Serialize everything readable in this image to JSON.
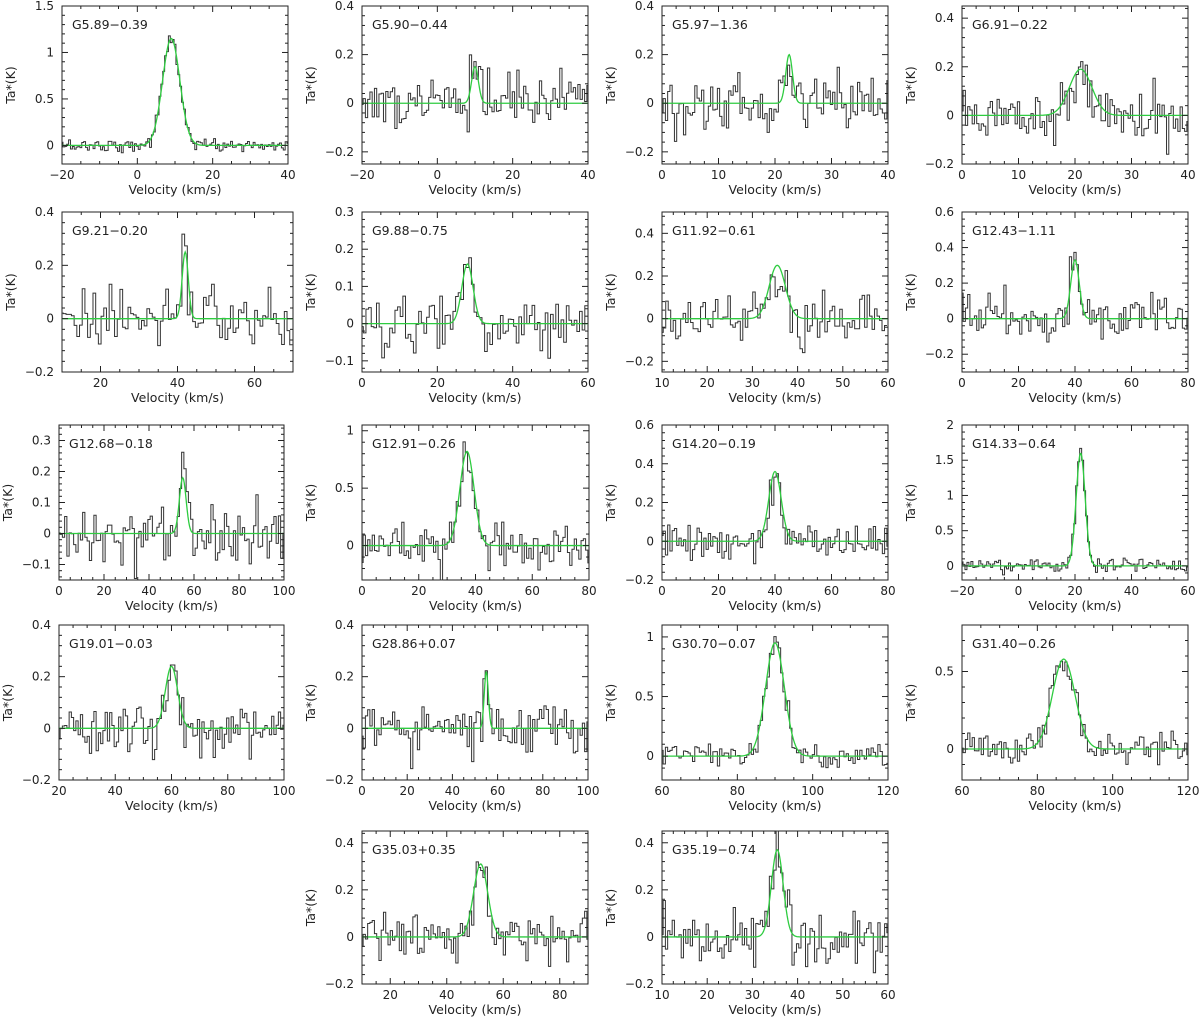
{
  "chart_data": [
    {
      "type": "line",
      "title": "G5.89−0.39",
      "xlabel": "Velocity (km/s)",
      "ylabel": "Ta*(K)",
      "xlim": [
        -20,
        40
      ],
      "ylim": [
        -0.2,
        1.5
      ],
      "xticks": [
        -20,
        0,
        20,
        40
      ],
      "yticks": [
        0,
        0.5,
        1,
        1.5
      ],
      "line": {
        "center": 9,
        "sigma": 2.3,
        "peak": 1.15
      },
      "noise": 0.035,
      "step": 0.5,
      "series": []
    },
    {
      "type": "line",
      "title": "G5.90−0.44",
      "xlabel": "Velocity (km/s)",
      "ylabel": "Ta*(K)",
      "xlim": [
        -20,
        40
      ],
      "ylim": [
        -0.25,
        0.4
      ],
      "xticks": [
        -20,
        0,
        20,
        40
      ],
      "yticks": [
        -0.2,
        0,
        0.2,
        0.4
      ],
      "line": {
        "center": 10,
        "sigma": 0.9,
        "peak": 0.15
      },
      "noise": 0.06,
      "step": 0.6,
      "series": []
    },
    {
      "type": "line",
      "title": "G5.97−1.36",
      "xlabel": "Velocity (km/s)",
      "ylabel": "Ta*(K)",
      "xlim": [
        0,
        40
      ],
      "ylim": [
        -0.25,
        0.4
      ],
      "xticks": [
        0,
        10,
        20,
        30,
        40
      ],
      "yticks": [
        -0.2,
        0,
        0.2,
        0.4
      ],
      "line": {
        "center": 22.5,
        "sigma": 0.6,
        "peak": 0.2
      },
      "noise": 0.055,
      "step": 0.4,
      "series": []
    },
    {
      "type": "line",
      "title": "G6.91−0.22",
      "xlabel": "Velocity (km/s)",
      "ylabel": "Ta*(K)",
      "xlim": [
        0,
        40
      ],
      "ylim": [
        -0.2,
        0.45
      ],
      "xticks": [
        0,
        10,
        20,
        30,
        40
      ],
      "yticks": [
        -0.2,
        0,
        0.2,
        0.4
      ],
      "line": {
        "center": 21,
        "sigma": 2.0,
        "peak": 0.19
      },
      "noise": 0.06,
      "step": 0.4,
      "series": []
    },
    {
      "type": "line",
      "title": "G9.21−0.20",
      "xlabel": "Velocity (km/s)",
      "ylabel": "Ta*(K)",
      "xlim": [
        10,
        70
      ],
      "ylim": [
        -0.2,
        0.4
      ],
      "xticks": [
        20,
        40,
        60
      ],
      "yticks": [
        -0.2,
        0,
        0.2,
        0.4
      ],
      "line": {
        "center": 42,
        "sigma": 0.8,
        "peak": 0.25
      },
      "noise": 0.06,
      "step": 0.7,
      "series": []
    },
    {
      "type": "line",
      "title": "G9.88−0.75",
      "xlabel": "Velocity (km/s)",
      "ylabel": "Ta*(K)",
      "xlim": [
        0,
        60
      ],
      "ylim": [
        -0.13,
        0.3
      ],
      "xticks": [
        0,
        20,
        40,
        60
      ],
      "yticks": [
        -0.1,
        0,
        0.1,
        0.2,
        0.3
      ],
      "line": {
        "center": 28,
        "sigma": 1.5,
        "peak": 0.16
      },
      "noise": 0.04,
      "step": 0.7,
      "series": []
    },
    {
      "type": "line",
      "title": "G11.92−0.61",
      "xlabel": "Velocity (km/s)",
      "ylabel": "Ta*(K)",
      "xlim": [
        10,
        60
      ],
      "ylim": [
        -0.25,
        0.5
      ],
      "xticks": [
        10,
        20,
        30,
        40,
        50,
        60
      ],
      "yticks": [
        -0.2,
        0,
        0.2,
        0.4
      ],
      "line": {
        "center": 35.5,
        "sigma": 1.8,
        "peak": 0.25
      },
      "noise": 0.06,
      "step": 0.55,
      "series": []
    },
    {
      "type": "line",
      "title": "G12.43−1.11",
      "xlabel": "Velocity (km/s)",
      "ylabel": "Ta*(K)",
      "xlim": [
        0,
        80
      ],
      "ylim": [
        -0.3,
        0.6
      ],
      "xticks": [
        0,
        20,
        40,
        60,
        80
      ],
      "yticks": [
        -0.2,
        0,
        0.2,
        0.4,
        0.6
      ],
      "line": {
        "center": 40,
        "sigma": 1.5,
        "peak": 0.33
      },
      "noise": 0.07,
      "step": 0.8,
      "series": []
    },
    {
      "type": "line",
      "title": "G12.68−0.18",
      "xlabel": "Velocity (km/s)",
      "ylabel": "Ta*(K)",
      "xlim": [
        0,
        100
      ],
      "ylim": [
        -0.15,
        0.35
      ],
      "xticks": [
        0,
        20,
        40,
        60,
        80,
        100
      ],
      "yticks": [
        -0.1,
        0,
        0.1,
        0.2,
        0.3
      ],
      "line": {
        "center": 55,
        "sigma": 1.5,
        "peak": 0.18
      },
      "noise": 0.05,
      "step": 1.0,
      "series": []
    },
    {
      "type": "line",
      "title": "G12.91−0.26",
      "xlabel": "Velocity (km/s)",
      "ylabel": "Ta*(K)",
      "xlim": [
        0,
        80
      ],
      "ylim": [
        -0.3,
        1.05
      ],
      "xticks": [
        0,
        20,
        40,
        60,
        80
      ],
      "yticks": [
        0,
        0.5,
        1
      ],
      "line": {
        "center": 37,
        "sigma": 2.5,
        "peak": 0.82
      },
      "noise": 0.09,
      "step": 0.8,
      "series": []
    },
    {
      "type": "line",
      "title": "G14.20−0.19",
      "xlabel": "Velocity (km/s)",
      "ylabel": "Ta*(K)",
      "xlim": [
        0,
        80
      ],
      "ylim": [
        -0.2,
        0.6
      ],
      "xticks": [
        0,
        20,
        40,
        60,
        80
      ],
      "yticks": [
        -0.2,
        0,
        0.2,
        0.4,
        0.6
      ],
      "line": {
        "center": 40,
        "sigma": 2.2,
        "peak": 0.36
      },
      "noise": 0.05,
      "step": 0.8,
      "series": []
    },
    {
      "type": "line",
      "title": "G14.33−0.64",
      "xlabel": "Velocity (km/s)",
      "ylabel": "Ta*(K)",
      "xlim": [
        -20,
        60
      ],
      "ylim": [
        -0.2,
        2
      ],
      "xticks": [
        -20,
        0,
        20,
        40,
        60
      ],
      "yticks": [
        0,
        0.5,
        1,
        1.5,
        2
      ],
      "line": {
        "center": 22,
        "sigma": 1.6,
        "peak": 1.6
      },
      "noise": 0.05,
      "step": 0.7,
      "series": []
    },
    {
      "type": "line",
      "title": "G19.01−0.03",
      "xlabel": "Velocity (km/s)",
      "ylabel": "Ta*(K)",
      "xlim": [
        20,
        100
      ],
      "ylim": [
        -0.2,
        0.4
      ],
      "xticks": [
        20,
        40,
        60,
        80,
        100
      ],
      "yticks": [
        -0.2,
        0,
        0.2,
        0.4
      ],
      "line": {
        "center": 60,
        "sigma": 2.2,
        "peak": 0.24
      },
      "noise": 0.045,
      "step": 0.8,
      "series": []
    },
    {
      "type": "line",
      "title": "G28.86+0.07",
      "xlabel": "Velocity (km/s)",
      "ylabel": "Ta*(K)",
      "xlim": [
        0,
        100
      ],
      "ylim": [
        -0.2,
        0.4
      ],
      "xticks": [
        0,
        20,
        40,
        60,
        80,
        100
      ],
      "yticks": [
        -0.2,
        0,
        0.2,
        0.4
      ],
      "line": {
        "center": 55,
        "sigma": 0.9,
        "peak": 0.22
      },
      "noise": 0.05,
      "step": 1.0,
      "series": []
    },
    {
      "type": "line",
      "title": "G30.70−0.07",
      "xlabel": "Velocity (km/s)",
      "ylabel": "Ta*(K)",
      "xlim": [
        60,
        120
      ],
      "ylim": [
        -0.2,
        1.1
      ],
      "xticks": [
        60,
        80,
        100,
        120
      ],
      "yticks": [
        0,
        0.5,
        1
      ],
      "line": {
        "center": 90,
        "sigma": 2.5,
        "peak": 0.95
      },
      "noise": 0.05,
      "step": 0.6,
      "series": []
    },
    {
      "type": "line",
      "title": "G31.40−0.26",
      "xlabel": "Velocity (km/s)",
      "ylabel": "Ta*(K)",
      "xlim": [
        60,
        120
      ],
      "ylim": [
        -0.2,
        0.8
      ],
      "xticks": [
        60,
        80,
        100,
        120
      ],
      "yticks": [
        0,
        0.5
      ],
      "line": {
        "center": 87,
        "sigma": 3.0,
        "peak": 0.58
      },
      "noise": 0.05,
      "step": 0.6,
      "series": []
    },
    {
      "type": "line",
      "title": "G35.03+0.35",
      "xlabel": "Velocity (km/s)",
      "ylabel": "Ta*(K)",
      "xlim": [
        10,
        90
      ],
      "ylim": [
        -0.2,
        0.45
      ],
      "xticks": [
        20,
        40,
        60,
        80
      ],
      "yticks": [
        -0.2,
        0,
        0.2,
        0.4
      ],
      "line": {
        "center": 52,
        "sigma": 2.5,
        "peak": 0.31
      },
      "noise": 0.05,
      "step": 0.8,
      "series": []
    },
    {
      "type": "line",
      "title": "G35.19−0.74",
      "xlabel": "Velocity (km/s)",
      "ylabel": "Ta*(K)",
      "xlim": [
        10,
        60
      ],
      "ylim": [
        -0.2,
        0.45
      ],
      "xticks": [
        10,
        20,
        30,
        40,
        50,
        60
      ],
      "yticks": [
        -0.2,
        0,
        0.2,
        0.4
      ],
      "line": {
        "center": 35.5,
        "sigma": 1.3,
        "peak": 0.37
      },
      "noise": 0.055,
      "step": 0.5,
      "series": []
    }
  ],
  "colors": {
    "spectrum": "#333333",
    "fit": "#2ecc40",
    "frame": "#222222"
  }
}
